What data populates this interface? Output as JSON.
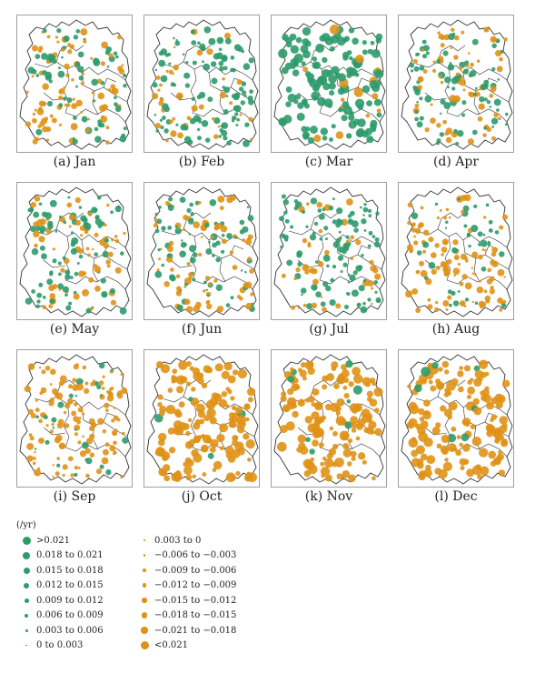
{
  "colors": {
    "positive": "#2e9b6b",
    "negative": "#e09216",
    "boundary": "#333333"
  },
  "panels": [
    {
      "id": "jan",
      "caption": "(a) Jan",
      "trend": "mixed-west-neg"
    },
    {
      "id": "feb",
      "caption": "(b) Feb",
      "trend": "mostly-positive"
    },
    {
      "id": "mar",
      "caption": "(c) Mar",
      "trend": "strong-positive"
    },
    {
      "id": "apr",
      "caption": "(d) Apr",
      "trend": "mixed"
    },
    {
      "id": "may",
      "caption": "(e) May",
      "trend": "mixed-east-neg"
    },
    {
      "id": "jun",
      "caption": "(f) Jun",
      "trend": "mixed"
    },
    {
      "id": "jul",
      "caption": "(g) Jul",
      "trend": "mostly-positive"
    },
    {
      "id": "aug",
      "caption": "(h) Aug",
      "trend": "south-neg"
    },
    {
      "id": "sep",
      "caption": "(i) Sep",
      "trend": "mostly-negative"
    },
    {
      "id": "oct",
      "caption": "(j) Oct",
      "trend": "strong-negative"
    },
    {
      "id": "nov",
      "caption": "(k) Nov",
      "trend": "strong-negative"
    },
    {
      "id": "dec",
      "caption": "(l) Dec",
      "trend": "strong-negative"
    }
  ],
  "legend": {
    "unit": "(/yr)",
    "col1": [
      {
        "label": ">0.021",
        "sign": "pos",
        "size": 9
      },
      {
        "label": "0.018 to 0.021",
        "sign": "pos",
        "size": 8
      },
      {
        "label": "0.015 to 0.018",
        "sign": "pos",
        "size": 7
      },
      {
        "label": "0.012 to 0.015",
        "sign": "pos",
        "size": 6
      },
      {
        "label": "0.009 to 0.012",
        "sign": "pos",
        "size": 5
      },
      {
        "label": "0.006 to 0.009",
        "sign": "pos",
        "size": 4
      },
      {
        "label": "0.003 to 0.006",
        "sign": "pos",
        "size": 3
      },
      {
        "label": "0 to 0.003",
        "sign": "pos",
        "size": 1.5
      }
    ],
    "col2": [
      {
        "label": "0.003 to 0",
        "sign": "neg",
        "size": 1.5
      },
      {
        "label": "−0.006 to −0.003",
        "sign": "neg",
        "size": 2.5
      },
      {
        "label": "−0.009 to −0.006",
        "sign": "neg",
        "size": 3.5
      },
      {
        "label": "−0.012 to −0.009",
        "sign": "neg",
        "size": 4.5
      },
      {
        "label": "−0.015 to −0.012",
        "sign": "neg",
        "size": 5.5
      },
      {
        "label": "−0.018 to −0.015",
        "sign": "neg",
        "size": 6.5
      },
      {
        "label": "−0.021 to −0.018",
        "sign": "neg",
        "size": 7.5
      },
      {
        "label": "<0.021",
        "sign": "neg",
        "size": 9
      }
    ]
  }
}
